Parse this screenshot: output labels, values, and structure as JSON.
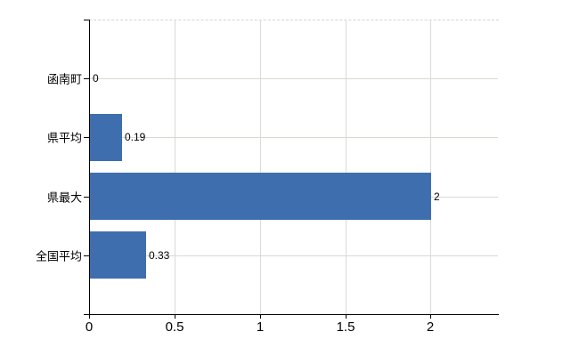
{
  "chart_data": {
    "type": "bar",
    "orientation": "horizontal",
    "title": "",
    "xlabel": "",
    "ylabel": "",
    "categories": [
      "函南町",
      "県平均",
      "県最大",
      "全国平均"
    ],
    "values": [
      0,
      0.19,
      2,
      0.33
    ],
    "data_labels": [
      "0",
      "0.19",
      "2",
      "0.33"
    ],
    "x_ticks": [
      0,
      0.5,
      1,
      1.5,
      2
    ],
    "x_tick_labels": [
      "0",
      "0.5",
      "1",
      "1.5",
      "2"
    ],
    "xlim": [
      0,
      2.4
    ],
    "grid": true,
    "legend": false,
    "colors": {
      "bar": "#3f6eae",
      "grid_horizontal": "#d4dcd0",
      "grid_vertical": "#dadada",
      "axis": "#000000",
      "plot_top_border": "#d4d4d4",
      "background": "#ffffff",
      "text": "#000000"
    }
  }
}
